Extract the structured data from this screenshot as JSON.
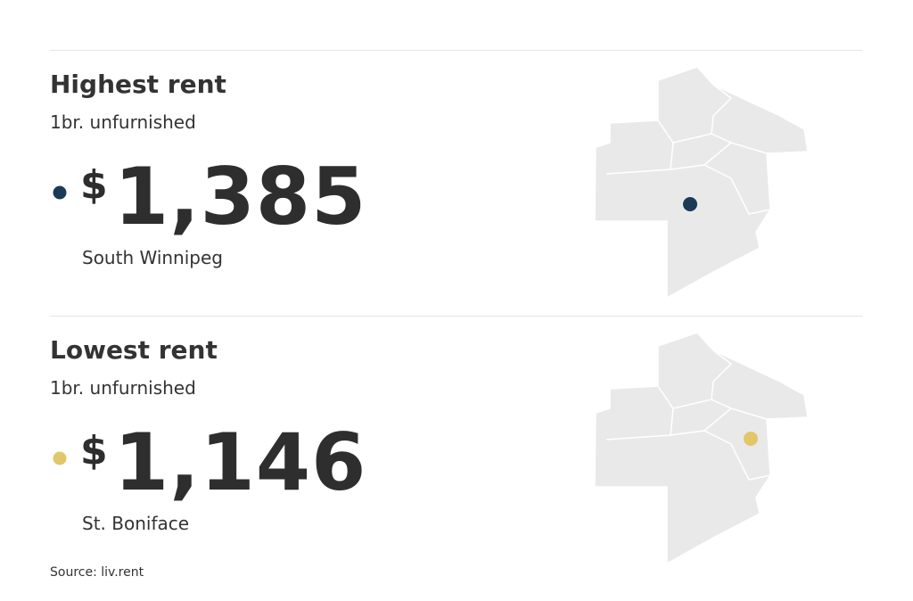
{
  "sections": [
    {
      "title": "Highest rent",
      "subtitle": "1br. unfurnished",
      "currency": "$",
      "amount": "1,385",
      "location": "South Winnipeg",
      "dot_color": "#1b3a57"
    },
    {
      "title": "Lowest rent",
      "subtitle": "1br. unfurnished",
      "currency": "$",
      "amount": "1,146",
      "location": "St. Boniface",
      "dot_color": "#e2c66a"
    }
  ],
  "source": "Source: liv.rent"
}
